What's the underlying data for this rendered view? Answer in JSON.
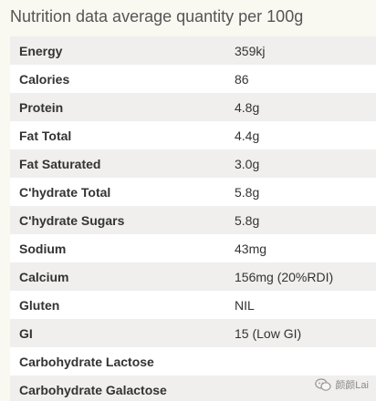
{
  "heading": "Nutrition data average quantity per 100g",
  "rows": [
    {
      "label": "Energy",
      "value": "359kj"
    },
    {
      "label": "Calories",
      "value": "86"
    },
    {
      "label": "Protein",
      "value": "4.8g"
    },
    {
      "label": "Fat Total",
      "value": "4.4g"
    },
    {
      "label": "Fat Saturated",
      "value": "3.0g"
    },
    {
      "label": "C'hydrate Total",
      "value": "5.8g"
    },
    {
      "label": "C'hydrate Sugars",
      "value": "5.8g"
    },
    {
      "label": "Sodium",
      "value": "43mg"
    },
    {
      "label": "Calcium",
      "value": "156mg (20%RDI)"
    },
    {
      "label": "Gluten",
      "value": "NIL"
    },
    {
      "label": "GI",
      "value": "15 (Low GI)"
    },
    {
      "label": "Carbohydrate Lactose",
      "value": ""
    },
    {
      "label": "Carbohydrate Galactose",
      "value": ""
    }
  ],
  "watermark": {
    "icon": "chat-bubble-icon",
    "text": "颜颜Lai"
  },
  "colors": {
    "page_background": "#f9f8f1",
    "row_shaded": "#f0efee",
    "row_plain": "#ffffff",
    "text": "#333333",
    "heading_text": "#555555"
  }
}
